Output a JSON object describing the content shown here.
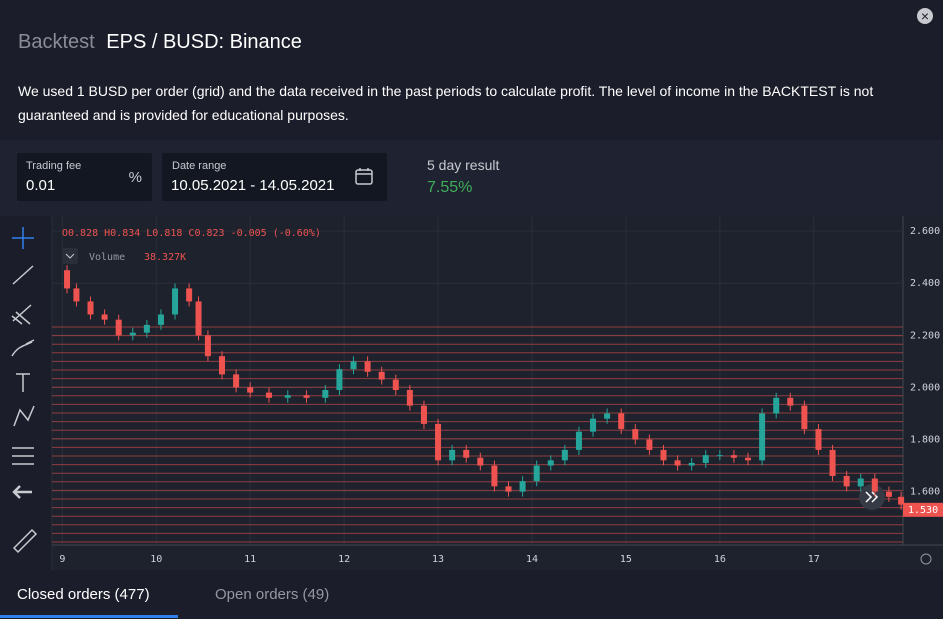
{
  "header": {
    "section": "Backtest",
    "title": "EPS / BUSD: Binance",
    "close": "×",
    "description": "We used 1 BUSD per order (grid) and the data received in the past periods to calculate profit. The level of income in the BACKTEST is not guaranteed and is provided for educational purposes."
  },
  "fields": {
    "fee": {
      "label": "Trading fee",
      "value": "0.01",
      "unit": "%"
    },
    "range": {
      "label": "Date range",
      "value": "10.05.2021 - 14.05.2021"
    },
    "result": {
      "label": "5 day result",
      "value": "7.55%"
    }
  },
  "legend": {
    "ohlc": "O0.828  H0.834  L0.818  C0.823  -0.005 (-0.60%)",
    "volume_label": "Volume",
    "volume_value": "38.327K"
  },
  "chart_data": {
    "type": "candlestick",
    "x": [
      8.92,
      9.05,
      9.15,
      9.3,
      9.45,
      9.6,
      9.75,
      9.9,
      10.05,
      10.2,
      10.35,
      10.45,
      10.55,
      10.7,
      10.85,
      11.0,
      11.2,
      11.4,
      11.6,
      11.8,
      11.95,
      12.1,
      12.25,
      12.4,
      12.55,
      12.7,
      12.85,
      13.0,
      13.15,
      13.3,
      13.45,
      13.6,
      13.75,
      13.9,
      14.05,
      14.2,
      14.35,
      14.5,
      14.65,
      14.8,
      14.95,
      15.1,
      15.25,
      15.4,
      15.55,
      15.7,
      15.85,
      16.0,
      16.15,
      16.3,
      16.45,
      16.6,
      16.75,
      16.9,
      17.05,
      17.2,
      17.35,
      17.5,
      17.65,
      17.8,
      17.93
    ],
    "values": [
      2.45,
      2.38,
      2.33,
      2.28,
      2.26,
      2.2,
      2.21,
      2.24,
      2.28,
      2.38,
      2.33,
      2.2,
      2.12,
      2.05,
      2.0,
      1.98,
      1.96,
      1.97,
      1.96,
      1.99,
      2.07,
      2.1,
      2.06,
      2.03,
      1.99,
      1.93,
      1.86,
      1.72,
      1.76,
      1.73,
      1.7,
      1.62,
      1.6,
      1.64,
      1.7,
      1.72,
      1.76,
      1.83,
      1.88,
      1.9,
      1.84,
      1.8,
      1.76,
      1.72,
      1.7,
      1.71,
      1.74,
      1.74,
      1.73,
      1.72,
      1.9,
      1.96,
      1.93,
      1.84,
      1.76,
      1.66,
      1.62,
      1.65,
      1.6,
      1.58,
      1.55
    ],
    "up_color": "#26a69a",
    "down_color": "#ef5350",
    "xlim": [
      8.89,
      17.95
    ],
    "xticks": [
      9,
      10,
      11,
      12,
      13,
      14,
      15,
      16,
      17
    ],
    "ylim": [
      1.395,
      2.658
    ],
    "yticks": [
      {
        "value": 2.6,
        "label": "2.600"
      },
      {
        "value": 2.4,
        "label": "2.400"
      },
      {
        "value": 2.2,
        "label": "2.200"
      },
      {
        "value": 2.0,
        "label": "2.000"
      },
      {
        "value": 1.8,
        "label": "1.800"
      },
      {
        "value": 1.6,
        "label": "1.600"
      }
    ],
    "price_tag": {
      "value": 1.53,
      "label": "1.530"
    },
    "grid": true
  },
  "tabs": [
    {
      "label": "Closed orders (477)"
    },
    {
      "label": "Open orders (49)"
    }
  ]
}
